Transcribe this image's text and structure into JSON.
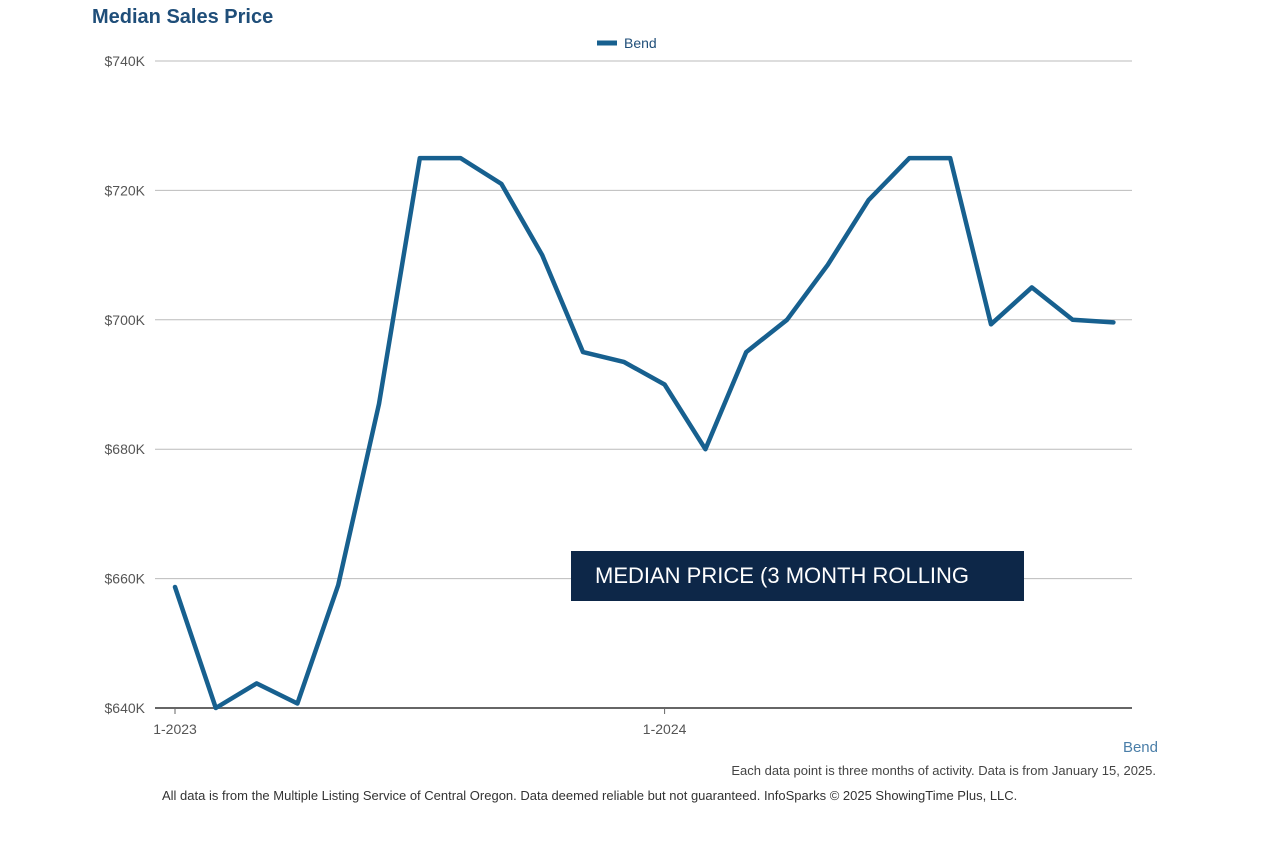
{
  "chart_data": {
    "type": "line",
    "title": "Median Sales Price",
    "ylim": [
      640000,
      740000
    ],
    "y_ticks": [
      {
        "value": 640000,
        "label": "$640K"
      },
      {
        "value": 660000,
        "label": "$660K"
      },
      {
        "value": 680000,
        "label": "$680K"
      },
      {
        "value": 700000,
        "label": "$700K"
      },
      {
        "value": 720000,
        "label": "$720K"
      },
      {
        "value": 740000,
        "label": "$740K"
      }
    ],
    "x_ticks": [
      {
        "index": 0,
        "label": "1-2023"
      },
      {
        "index": 12,
        "label": "1-2024"
      }
    ],
    "grid": true,
    "legend_position": "top-center",
    "series": [
      {
        "name": "Bend",
        "color": "#17608f",
        "x": [
          "2023-01",
          "2023-02",
          "2023-03",
          "2023-04",
          "2023-05",
          "2023-06",
          "2023-07",
          "2023-08",
          "2023-09",
          "2023-10",
          "2023-11",
          "2023-12",
          "2024-01",
          "2024-02",
          "2024-03",
          "2024-04",
          "2024-05",
          "2024-06",
          "2024-07",
          "2024-08",
          "2024-09",
          "2024-10",
          "2024-11",
          "2024-12"
        ],
        "values": [
          658700,
          640000,
          643800,
          640700,
          659000,
          687000,
          725000,
          725000,
          721000,
          710000,
          695000,
          693500,
          690000,
          680000,
          695000,
          700000,
          708500,
          718500,
          725000,
          725000,
          699300,
          705000,
          700000,
          699600
        ]
      }
    ]
  },
  "annotation": "MEDIAN PRICE (3 MONTH ROLLING",
  "region_link": "Bend",
  "footnote_1": "Each data point is three months of activity. Data is from January 15, 2025.",
  "footnote_2": "All data is from the Multiple Listing Service of Central Oregon. Data deemed reliable but not guaranteed. InfoSparks © 2025 ShowingTime Plus, LLC."
}
